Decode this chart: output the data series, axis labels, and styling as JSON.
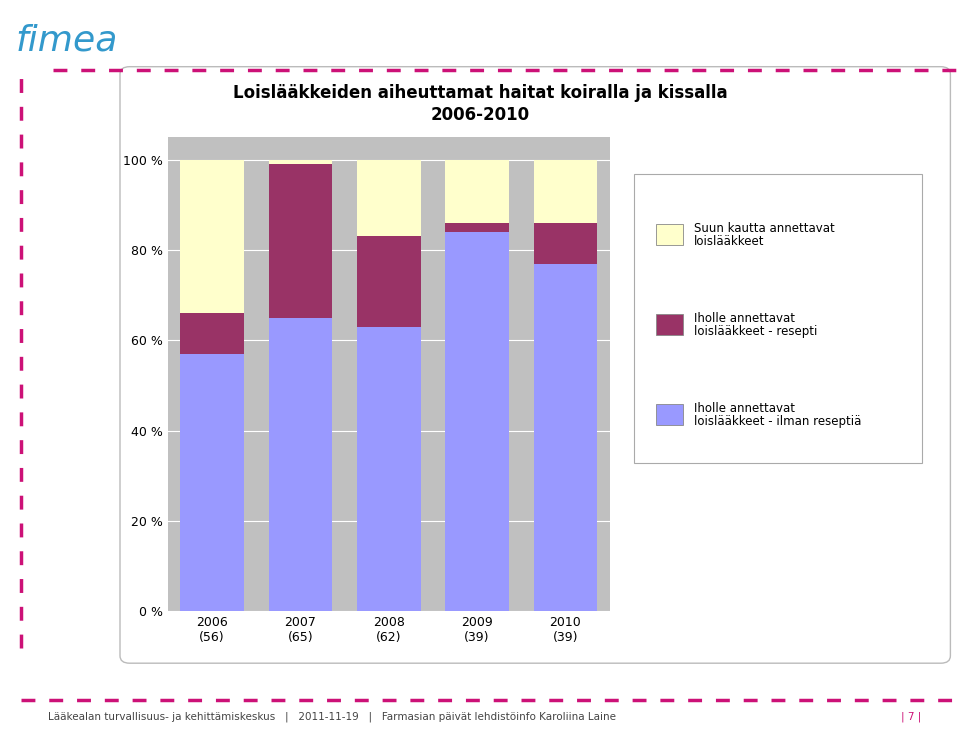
{
  "title_line1": "Loislääkkeiden aiheuttamat haitat koiralla ja kissalla",
  "title_line2": "2006-2010",
  "categories": [
    "2006\n(56)",
    "2007\n(65)",
    "2008\n(62)",
    "2009\n(39)",
    "2010\n(39)"
  ],
  "blue_values": [
    57,
    65,
    63,
    84,
    77
  ],
  "darkred_values": [
    9,
    34,
    20,
    2,
    9
  ],
  "yellow_values": [
    34,
    1,
    17,
    14,
    14
  ],
  "blue_color": "#9999FF",
  "darkred_color": "#993366",
  "yellow_color": "#FFFFCC",
  "chart_bg": "#C0C0C0",
  "outer_bg": "#FFFFFF",
  "box_bg": "#FFFFFF",
  "box_edge": "#BBBBBB",
  "legend_labels": [
    "Suun kautta annettavat\nloislääkkeet",
    "Iholle annettavat\nloislääkkeet - resepti",
    "Iholle annettavat\nloislääkkeet - ilman reseptiä"
  ],
  "ytick_labels": [
    "0 %",
    "20 %",
    "40 %",
    "60 %",
    "80 %",
    "100 %"
  ],
  "ytick_values": [
    0,
    20,
    40,
    60,
    80,
    100
  ],
  "footer_text": "Lääkealan turvallisuus- ja kehittämiskeskus   |   2011-11-19   |   Farmasian päivät lehdistöinfo Karoliina Laine",
  "footer_page": "| 7 |",
  "logo_color": "#3399CC",
  "pink_color": "#CC1177",
  "fimea_text": "fimea"
}
